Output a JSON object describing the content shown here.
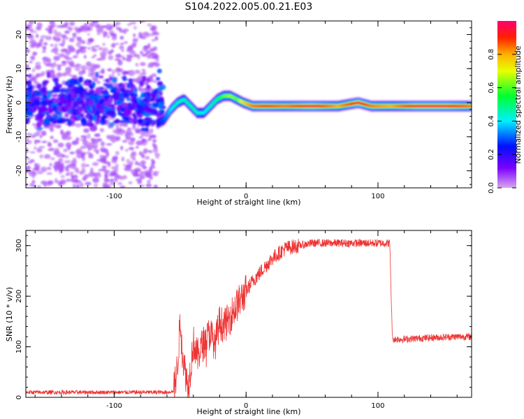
{
  "title": "S104.2022.005.00.21.E03",
  "chart_data": [
    {
      "type": "heatmap",
      "title": "S104.2022.005.00.21.E03",
      "xlabel": "Height of straight line (km)",
      "ylabel": "Frequency (Hz)",
      "xlim": [
        -167,
        171
      ],
      "ylim": [
        -25,
        24
      ],
      "xticks": [
        -100,
        0,
        100
      ],
      "xtick_labels": [
        "-100",
        "0",
        "100"
      ],
      "yticks": [
        -20,
        -10,
        0,
        10,
        20
      ],
      "ytick_labels": [
        "-20",
        "-10",
        "0",
        "10",
        "20"
      ],
      "colorbar": {
        "label": "Normalized spectral amplitude",
        "range": [
          0,
          1
        ],
        "ticks": [
          0.0,
          0.2,
          0.4,
          0.6,
          0.8
        ],
        "tick_labels": [
          "0.0",
          "0.2",
          "0.4",
          "0.6",
          "0.8"
        ],
        "colormap": "gist_rainbow_r"
      },
      "ridge": {
        "x": [
          -67,
          -62,
          -57,
          -52,
          -47,
          -42,
          -37,
          -32,
          -27,
          -22,
          -17,
          -12,
          -7,
          -2,
          5,
          15,
          30,
          50,
          70,
          85,
          95,
          110,
          130,
          150,
          170
        ],
        "y": [
          -6,
          -5,
          -2,
          0,
          1,
          -1,
          -3,
          -3,
          -1,
          1,
          2,
          2,
          1,
          0,
          -1,
          -1,
          -1,
          -1,
          -1,
          0,
          -1,
          -1,
          -1,
          -1,
          -1
        ],
        "amplitude": [
          0.25,
          0.3,
          0.4,
          0.45,
          0.45,
          0.45,
          0.45,
          0.4,
          0.45,
          0.5,
          0.6,
          0.65,
          0.6,
          0.75,
          0.85,
          0.9,
          0.85,
          0.95,
          0.8,
          0.95,
          0.85,
          0.8,
          0.95,
          0.95,
          0.85
        ]
      },
      "noise_region": {
        "x_range": [
          -167,
          -67
        ],
        "y_range": [
          -25,
          24
        ],
        "core_y_range": [
          -6,
          6
        ],
        "amplitude_max": 0.25
      }
    },
    {
      "type": "line",
      "xlabel": "Height of straight line (km)",
      "ylabel": "SNR (10 * v/v)",
      "xlim": [
        -167,
        171
      ],
      "ylim": [
        0,
        330
      ],
      "xticks": [
        -100,
        0,
        100
      ],
      "xtick_labels": [
        "-100",
        "0",
        "100"
      ],
      "yticks": [
        0,
        100,
        200,
        300
      ],
      "ytick_labels": [
        "0",
        "100",
        "200",
        "300"
      ],
      "color": "#ee3333",
      "series": [
        {
          "x": [
            -167,
            -140,
            -120,
            -100,
            -80,
            -60,
            -55,
            -52,
            -50,
            -48,
            -46,
            -44,
            -42,
            -40,
            -37,
            -34,
            -30,
            -27,
            -24,
            -20,
            -17,
            -14,
            -10,
            -5,
            0,
            5,
            10,
            15,
            20,
            25,
            30,
            40,
            50,
            60,
            70,
            80,
            90,
            100,
            109,
            110,
            111,
            120,
            140,
            160,
            171
          ],
          "y": [
            10,
            10,
            10,
            10,
            10,
            10,
            12,
            60,
            150,
            80,
            50,
            20,
            60,
            110,
            80,
            100,
            115,
            130,
            100,
            150,
            140,
            150,
            170,
            190,
            210,
            230,
            245,
            260,
            275,
            285,
            295,
            300,
            305,
            305,
            305,
            305,
            305,
            305,
            305,
            200,
            115,
            115,
            118,
            120,
            120
          ]
        }
      ]
    }
  ]
}
